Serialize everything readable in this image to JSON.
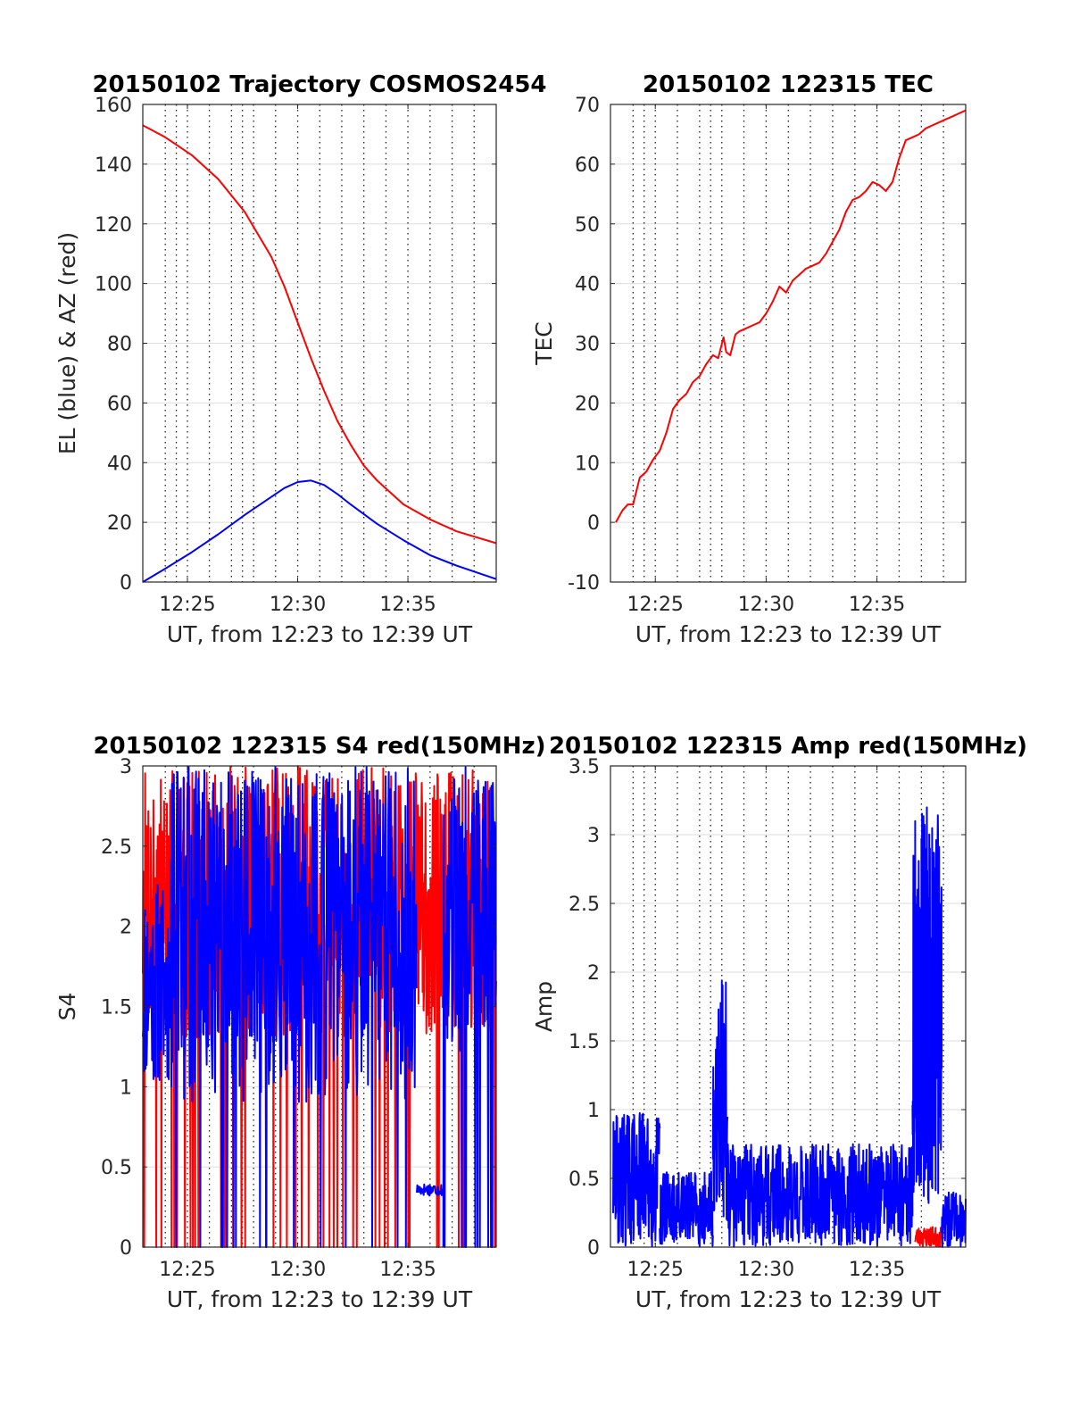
{
  "colors": {
    "red": "#ff0000",
    "blue": "#0000ff"
  },
  "chart_data": [
    {
      "id": "trajectory",
      "type": "line",
      "title": "20150102 Trajectory COSMOS2454",
      "xlabel": "UT, from 12:23 to 12:39 UT",
      "ylabel": "EL (blue) & AZ (red)",
      "xlim": [
        12.383,
        12.65
      ],
      "ylim": [
        0,
        160
      ],
      "xticks": [
        12.4167,
        12.5,
        12.5833
      ],
      "xticklabels": [
        "12:25",
        "12:30",
        "12:35"
      ],
      "yticks": [
        0,
        20,
        40,
        60,
        80,
        100,
        120,
        140,
        160
      ],
      "yticklabels": [
        "0",
        "20",
        "40",
        "60",
        "80",
        "100",
        "120",
        "140",
        "160"
      ],
      "grid": true,
      "series": [
        {
          "color": "red",
          "x": [
            12.383,
            12.4,
            12.42,
            12.44,
            12.46,
            12.48,
            12.49,
            12.5,
            12.51,
            12.52,
            12.53,
            12.54,
            12.55,
            12.56,
            12.58,
            12.6,
            12.62,
            12.65
          ],
          "y": [
            153,
            149,
            143,
            135,
            124,
            109,
            99,
            87,
            75,
            64,
            54,
            46,
            39,
            34,
            26,
            21,
            17,
            13
          ]
        },
        {
          "color": "blue",
          "x": [
            12.383,
            12.4,
            12.42,
            12.44,
            12.46,
            12.48,
            12.49,
            12.5,
            12.51,
            12.52,
            12.53,
            12.54,
            12.56,
            12.58,
            12.6,
            12.62,
            12.65
          ],
          "y": [
            0,
            4.5,
            10,
            16,
            22.5,
            28.5,
            31.5,
            33.5,
            34,
            32.5,
            29.5,
            26,
            19.5,
            14,
            9,
            5.5,
            1
          ]
        }
      ]
    },
    {
      "id": "tec",
      "type": "line",
      "title": "20150102 122315 TEC",
      "xlabel": "UT, from 12:23 to 12:39 UT",
      "ylabel": "TEC",
      "xlim": [
        12.383,
        12.65
      ],
      "ylim": [
        -10,
        70
      ],
      "xticks": [
        12.4167,
        12.5,
        12.5833
      ],
      "xticklabels": [
        "12:25",
        "12:30",
        "12:35"
      ],
      "yticks": [
        -10,
        0,
        10,
        20,
        30,
        40,
        50,
        60,
        70
      ],
      "yticklabels": [
        "-10",
        "0",
        "10",
        "20",
        "30",
        "40",
        "50",
        "60",
        "70"
      ],
      "grid": true,
      "series": [
        {
          "color": "red",
          "x": [
            12.387,
            12.392,
            12.396,
            12.4,
            12.405,
            12.41,
            12.415,
            12.42,
            12.425,
            12.43,
            12.435,
            12.44,
            12.445,
            12.45,
            12.455,
            12.46,
            12.464,
            12.468,
            12.47,
            12.473,
            12.477,
            12.48,
            12.485,
            12.49,
            12.495,
            12.5,
            12.505,
            12.51,
            12.515,
            12.52,
            12.525,
            12.53,
            12.535,
            12.54,
            12.545,
            12.55,
            12.555,
            12.56,
            12.565,
            12.57,
            12.575,
            12.58,
            12.585,
            12.59,
            12.595,
            12.6,
            12.605,
            12.61,
            12.615,
            12.62,
            12.625,
            12.63,
            12.635,
            12.64,
            12.645,
            12.65
          ],
          "y": [
            0,
            2,
            3,
            3,
            7.5,
            8.5,
            10.5,
            12,
            15,
            19,
            20.5,
            21.5,
            23.5,
            24.5,
            26.5,
            28,
            27.5,
            31,
            28.5,
            28,
            31.5,
            32,
            32.5,
            33,
            33.5,
            35,
            37,
            39.5,
            38.5,
            40.5,
            41.5,
            42.5,
            43,
            43.5,
            45,
            47,
            49,
            52,
            54,
            54.5,
            55.5,
            57,
            56.5,
            55.5,
            57,
            61,
            64,
            64.5,
            65,
            66,
            66.5,
            67,
            67.5,
            68,
            68.5,
            69
          ]
        }
      ]
    },
    {
      "id": "s4",
      "type": "line",
      "title": "20150102 122315 S4 red(150MHz)",
      "xlabel": "UT, from 12:23 to 12:39 UT",
      "ylabel": "S4",
      "xlim": [
        12.383,
        12.65
      ],
      "ylim": [
        0,
        3
      ],
      "xticks": [
        12.4167,
        12.5,
        12.5833
      ],
      "xticklabels": [
        "12:25",
        "12:30",
        "12:35"
      ],
      "yticks": [
        0,
        0.5,
        1,
        1.5,
        2,
        2.5,
        3
      ],
      "yticklabels": [
        "0",
        "0.5",
        "1",
        "1.5",
        "2",
        "2.5",
        "3"
      ],
      "grid": true,
      "series": [
        {
          "color": "red",
          "style": "noise",
          "segments": [
            {
              "x0": 12.383,
              "x1": 12.65,
              "low": 1.3,
              "high": 3.0,
              "dip_prob": 0.06,
              "step": 0.00035,
              "seed": 7
            }
          ]
        },
        {
          "color": "blue",
          "style": "noise",
          "segments": [
            {
              "x0": 12.383,
              "x1": 12.404,
              "low": 1.0,
              "high": 2.3,
              "dip_prob": 0.0,
              "step": 0.00035,
              "seed": 11
            },
            {
              "x0": 12.404,
              "x1": 12.59,
              "low": 0.9,
              "high": 3.0,
              "dip_prob": 0.03,
              "step": 0.00035,
              "seed": 13
            },
            {
              "x0": 12.59,
              "x1": 12.61,
              "low": 0.32,
              "high": 0.4,
              "dip_prob": 0.0,
              "step": 0.0004,
              "seed": 17
            },
            {
              "x0": 12.61,
              "x1": 12.65,
              "low": 1.2,
              "high": 3.0,
              "dip_prob": 0.08,
              "step": 0.00035,
              "seed": 19
            }
          ]
        }
      ]
    },
    {
      "id": "amp",
      "type": "line",
      "title": "20150102 122315 Amp red(150MHz)",
      "xlabel": "UT, from 12:23 to 12:39 UT",
      "ylabel": "Amp",
      "xlim": [
        12.383,
        12.65
      ],
      "ylim": [
        0,
        3.5
      ],
      "xticks": [
        12.4167,
        12.5,
        12.5833
      ],
      "xticklabels": [
        "12:25",
        "12:30",
        "12:35"
      ],
      "yticks": [
        0,
        0.5,
        1,
        1.5,
        2,
        2.5,
        3,
        3.5
      ],
      "yticklabels": [
        "0",
        "0.5",
        "1",
        "1.5",
        "2",
        "2.5",
        "3",
        "3.5"
      ],
      "grid": true,
      "series": [
        {
          "color": "red",
          "style": "noise",
          "segments": [
            {
              "x0": 12.612,
              "x1": 12.632,
              "low": 0.0,
              "high": 0.15,
              "dip_prob": 0.0,
              "step": 0.0003,
              "seed": 23
            }
          ]
        },
        {
          "color": "blue",
          "style": "noise",
          "segments": [
            {
              "x0": 12.385,
              "x1": 12.42,
              "low": 0.0,
              "high": 1.0,
              "dip_prob": 0.0,
              "step": 0.00025,
              "seed": 29
            },
            {
              "x0": 12.42,
              "x1": 12.46,
              "low": 0.0,
              "high": 0.55,
              "dip_prob": 0.0,
              "step": 0.00025,
              "seed": 31
            },
            {
              "x0": 12.46,
              "x1": 12.471,
              "low": 0.2,
              "high": 1.95,
              "dip_prob": 0.0,
              "step": 0.00025,
              "seed": 37
            },
            {
              "x0": 12.471,
              "x1": 12.61,
              "low": 0.0,
              "high": 0.75,
              "dip_prob": 0.0,
              "step": 0.00025,
              "seed": 41
            },
            {
              "x0": 12.61,
              "x1": 12.632,
              "low": 0.3,
              "high": 3.2,
              "dip_prob": 0.0,
              "step": 0.00012,
              "seed": 43
            },
            {
              "x0": 12.632,
              "x1": 12.65,
              "low": 0.0,
              "high": 0.4,
              "dip_prob": 0.0,
              "step": 0.00025,
              "seed": 47
            }
          ]
        }
      ]
    }
  ]
}
